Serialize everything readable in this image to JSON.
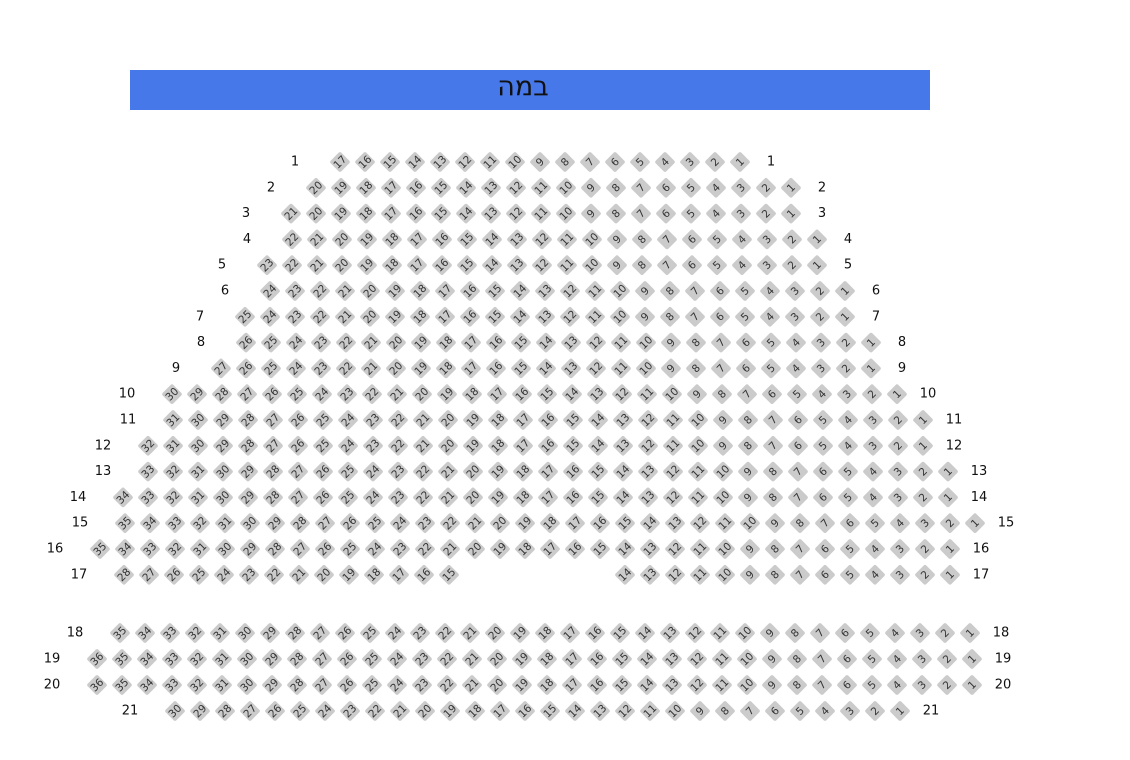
{
  "stage": "במה",
  "rows": [
    {
      "label": "1",
      "seats": [
        17,
        16,
        15,
        14,
        13,
        12,
        11,
        10,
        9,
        8,
        7,
        6,
        5,
        4,
        3,
        2,
        1
      ]
    },
    {
      "label": "2",
      "seats": [
        20,
        19,
        18,
        17,
        16,
        15,
        14,
        13,
        12,
        11,
        10,
        9,
        8,
        7,
        6,
        5,
        4,
        3,
        2,
        1
      ]
    },
    {
      "label": "3",
      "seats": [
        21,
        20,
        19,
        18,
        17,
        16,
        15,
        14,
        13,
        12,
        11,
        10,
        9,
        8,
        7,
        6,
        5,
        4,
        3,
        2,
        1
      ]
    },
    {
      "label": "4",
      "seats": [
        22,
        21,
        20,
        19,
        18,
        17,
        16,
        15,
        14,
        13,
        12,
        11,
        10,
        9,
        8,
        7,
        6,
        5,
        4,
        3,
        2,
        1
      ]
    },
    {
      "label": "5",
      "seats": [
        23,
        22,
        21,
        20,
        19,
        18,
        17,
        16,
        15,
        14,
        13,
        12,
        11,
        10,
        9,
        8,
        7,
        6,
        5,
        4,
        3,
        2,
        1
      ]
    },
    {
      "label": "6",
      "seats": [
        24,
        23,
        22,
        21,
        20,
        19,
        18,
        17,
        16,
        15,
        14,
        13,
        12,
        11,
        10,
        9,
        8,
        7,
        6,
        5,
        4,
        3,
        2,
        1
      ]
    },
    {
      "label": "7",
      "seats": [
        25,
        24,
        23,
        22,
        21,
        20,
        19,
        18,
        17,
        16,
        15,
        14,
        13,
        12,
        11,
        10,
        9,
        8,
        7,
        6,
        5,
        4,
        3,
        2,
        1
      ]
    },
    {
      "label": "8",
      "seats": [
        26,
        25,
        24,
        23,
        22,
        21,
        20,
        19,
        18,
        17,
        16,
        15,
        14,
        13,
        12,
        11,
        10,
        9,
        8,
        7,
        6,
        5,
        4,
        3,
        2,
        1
      ]
    },
    {
      "label": "9",
      "seats": [
        27,
        26,
        25,
        24,
        23,
        22,
        21,
        20,
        19,
        18,
        17,
        16,
        15,
        14,
        13,
        12,
        11,
        10,
        9,
        8,
        7,
        6,
        5,
        4,
        3,
        2,
        1
      ]
    },
    {
      "label": "10",
      "seats": [
        30,
        29,
        28,
        27,
        26,
        25,
        24,
        23,
        22,
        21,
        20,
        19,
        18,
        17,
        16,
        15,
        14,
        13,
        12,
        11,
        10,
        9,
        8,
        7,
        6,
        5,
        4,
        3,
        2,
        1
      ]
    },
    {
      "label": "11",
      "seats": [
        31,
        30,
        29,
        28,
        27,
        26,
        25,
        24,
        23,
        22,
        21,
        20,
        19,
        18,
        17,
        16,
        15,
        14,
        13,
        12,
        11,
        10,
        9,
        8,
        7,
        6,
        5,
        4,
        3,
        2,
        1
      ]
    },
    {
      "label": "12",
      "seats": [
        32,
        31,
        30,
        29,
        28,
        27,
        26,
        25,
        24,
        23,
        22,
        21,
        20,
        19,
        18,
        17,
        16,
        15,
        14,
        13,
        12,
        11,
        10,
        9,
        8,
        7,
        6,
        5,
        4,
        3,
        2,
        1
      ]
    },
    {
      "label": "13",
      "seats": [
        33,
        32,
        31,
        30,
        29,
        28,
        27,
        26,
        25,
        24,
        23,
        22,
        21,
        20,
        19,
        18,
        17,
        16,
        15,
        14,
        13,
        12,
        11,
        10,
        9,
        8,
        7,
        6,
        5,
        4,
        3,
        2,
        1
      ]
    },
    {
      "label": "14",
      "seats": [
        34,
        33,
        32,
        31,
        30,
        29,
        28,
        27,
        26,
        25,
        24,
        23,
        22,
        21,
        20,
        19,
        18,
        17,
        16,
        15,
        14,
        13,
        12,
        11,
        10,
        9,
        8,
        7,
        6,
        5,
        4,
        3,
        2,
        1
      ]
    },
    {
      "label": "15",
      "seats": [
        35,
        34,
        33,
        32,
        31,
        30,
        29,
        28,
        27,
        26,
        25,
        24,
        23,
        22,
        21,
        20,
        19,
        18,
        17,
        16,
        15,
        14,
        13,
        12,
        11,
        10,
        9,
        8,
        7,
        6,
        5,
        4,
        3,
        2,
        1
      ]
    },
    {
      "label": "16",
      "seats": [
        35,
        34,
        33,
        32,
        31,
        30,
        29,
        28,
        27,
        26,
        25,
        24,
        23,
        22,
        21,
        20,
        19,
        18,
        17,
        16,
        15,
        14,
        13,
        12,
        11,
        10,
        9,
        8,
        7,
        6,
        5,
        4,
        3,
        2,
        1
      ]
    },
    {
      "label": "17",
      "seats": [
        28,
        27,
        26,
        25,
        24,
        23,
        22,
        21,
        20,
        19,
        18,
        17,
        16,
        15,
        14,
        13,
        12,
        11,
        10,
        9,
        8,
        7,
        6,
        5,
        4,
        3,
        2,
        1
      ]
    },
    {
      "label": "18",
      "seats": [
        35,
        34,
        33,
        32,
        31,
        30,
        29,
        28,
        27,
        26,
        25,
        24,
        23,
        22,
        21,
        20,
        19,
        18,
        17,
        16,
        15,
        14,
        13,
        12,
        11,
        10,
        9,
        8,
        7,
        6,
        5,
        4,
        3,
        2,
        1
      ]
    },
    {
      "label": "19",
      "seats": [
        36,
        35,
        34,
        33,
        32,
        31,
        30,
        29,
        28,
        27,
        26,
        25,
        24,
        23,
        22,
        21,
        20,
        19,
        18,
        17,
        16,
        15,
        14,
        13,
        12,
        11,
        10,
        9,
        8,
        7,
        6,
        5,
        4,
        3,
        2,
        1
      ]
    },
    {
      "label": "20",
      "seats": [
        36,
        35,
        34,
        33,
        32,
        31,
        30,
        29,
        28,
        27,
        26,
        25,
        24,
        23,
        22,
        21,
        20,
        19,
        18,
        17,
        16,
        15,
        14,
        13,
        12,
        11,
        10,
        9,
        8,
        7,
        6,
        5,
        4,
        3,
        2,
        1
      ]
    },
    {
      "label": "21",
      "seats": [
        30,
        29,
        28,
        27,
        26,
        25,
        24,
        23,
        22,
        21,
        20,
        19,
        18,
        17,
        16,
        15,
        14,
        13,
        12,
        11,
        10,
        9,
        8,
        7,
        6,
        5,
        4,
        3,
        2,
        1
      ]
    }
  ]
}
